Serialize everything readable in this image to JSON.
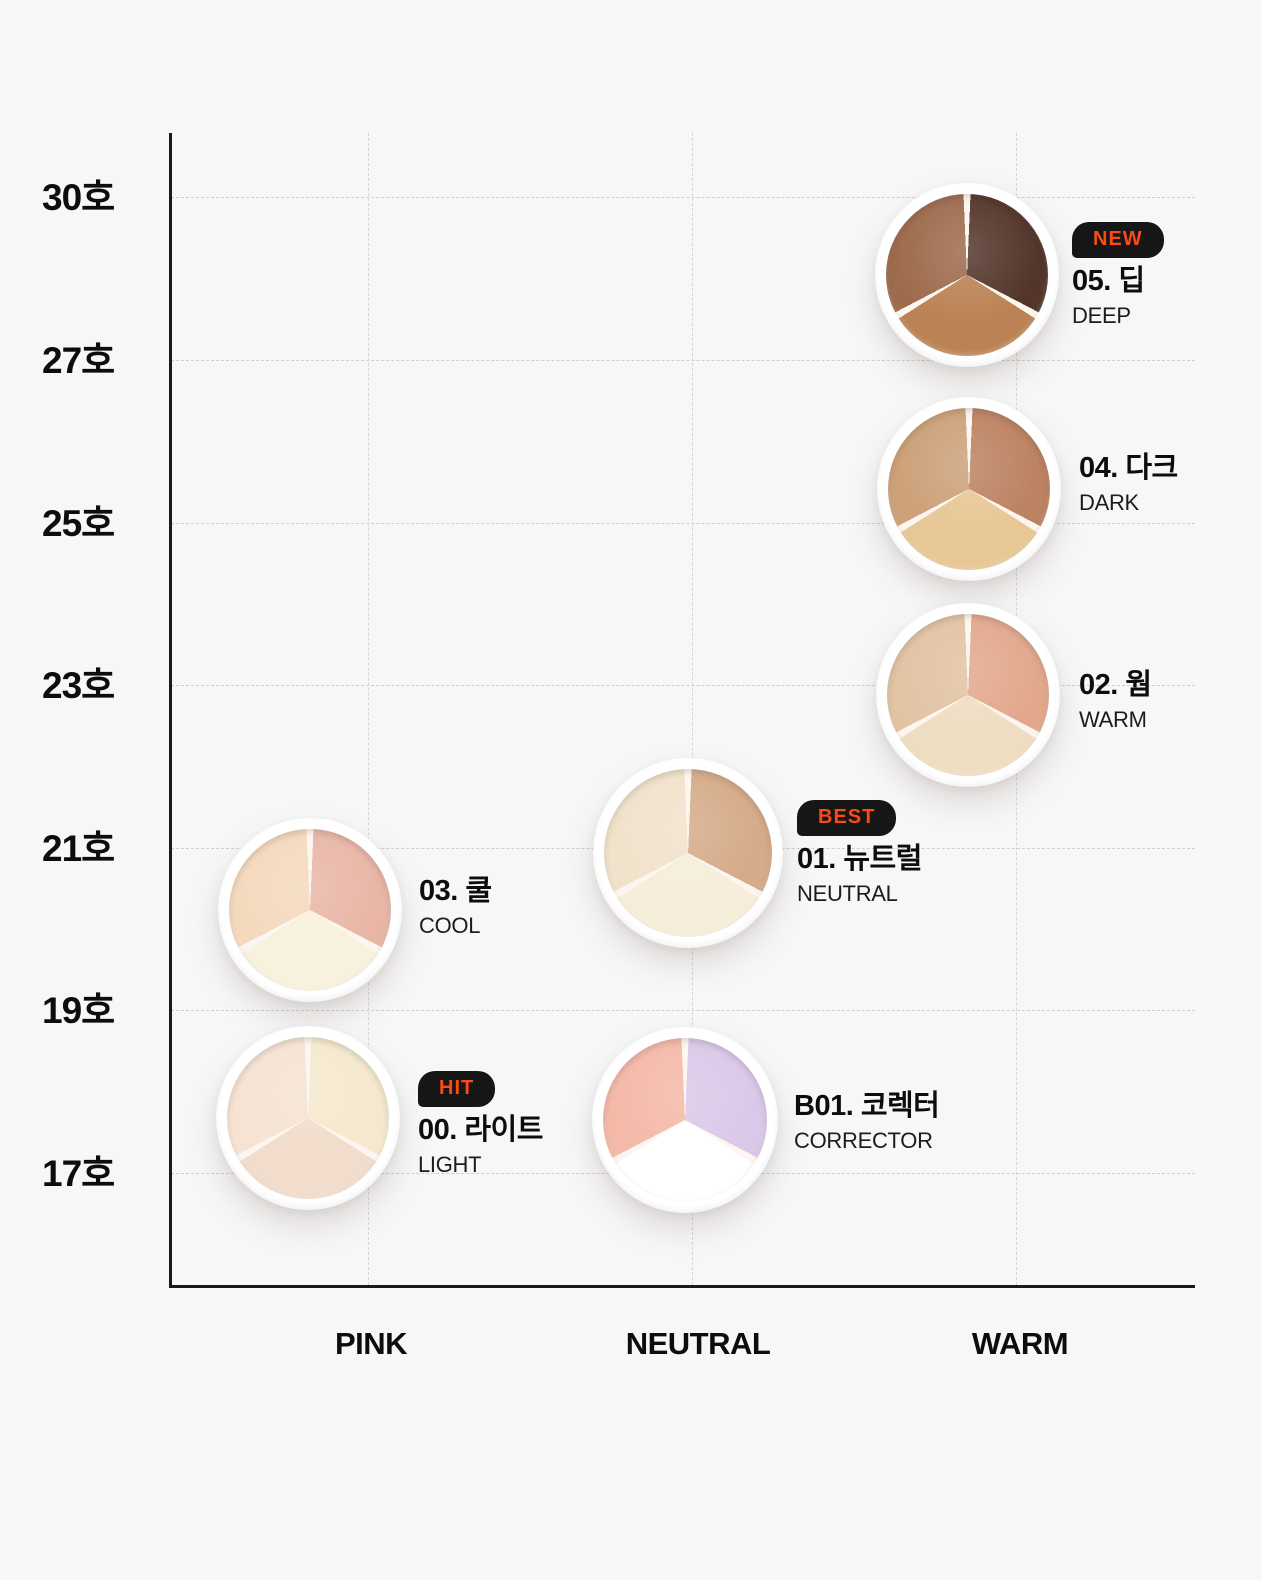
{
  "page": {
    "background": "#f7f7f8",
    "accent_orange": "#fb4b15",
    "badge_background": "#161616"
  },
  "chart_data": {
    "type": "scatter",
    "title": "",
    "description": "Concealer palette shade map: skin tone number (호) vs undertone",
    "x_axis": {
      "label": "",
      "categories": [
        "PINK",
        "NEUTRAL",
        "WARM"
      ]
    },
    "y_axis": {
      "label": "",
      "ticks": [
        "30호",
        "27호",
        "25호",
        "23호",
        "21호",
        "19호",
        "17호"
      ]
    },
    "grid": "dashed",
    "legend": "none",
    "products": [
      {
        "id": "05",
        "name": "05. 딥",
        "sub": "DEEP",
        "badge": "NEW",
        "column": "WARM",
        "shade_row": "≈28호",
        "wedges": {
          "left": "#9e6b4d",
          "right": "#53352a",
          "bottom": "#bb8355"
        }
      },
      {
        "id": "04",
        "name": "04. 다크",
        "sub": "DARK",
        "badge": null,
        "column": "WARM",
        "shade_row": "≈26호",
        "wedges": {
          "left": "#cda179",
          "right": "#bc8261",
          "bottom": "#e7c795"
        }
      },
      {
        "id": "02",
        "name": "02. 웜",
        "sub": "WARM",
        "badge": null,
        "column": "WARM",
        "shade_row": "23호",
        "wedges": {
          "left": "#e2c3a4",
          "right": "#e2a88c",
          "bottom": "#efddc2"
        }
      },
      {
        "id": "01",
        "name": "01. 뉴트럴",
        "sub": "NEUTRAL",
        "badge": "BEST",
        "column": "NEUTRAL",
        "shade_row": "21호",
        "wedges": {
          "left": "#f1e2cb",
          "right": "#d5ab89",
          "bottom": "#f6eeda"
        }
      },
      {
        "id": "03",
        "name": "03. 쿨",
        "sub": "COOL",
        "badge": null,
        "column": "PINK",
        "shade_row": "≈20호",
        "wedges": {
          "left": "#f4d9bd",
          "right": "#e9b6a6",
          "bottom": "#f8f1de"
        }
      },
      {
        "id": "00",
        "name": "00. 라이트",
        "sub": "LIGHT",
        "badge": "HIT",
        "column": "PINK",
        "shade_row": "≈18호",
        "wedges": {
          "left": "#f6e3d3",
          "right": "#f5e8cd",
          "bottom": "#f2dccb"
        }
      },
      {
        "id": "B01",
        "name": "B01. 코렉터",
        "sub": "CORRECTOR",
        "badge": null,
        "column": "NEUTRAL",
        "shade_row": "≈18호",
        "wedges": {
          "left": "#f4b9a8",
          "right": "#dbc8e8",
          "bottom": "#ffffff"
        }
      }
    ]
  }
}
